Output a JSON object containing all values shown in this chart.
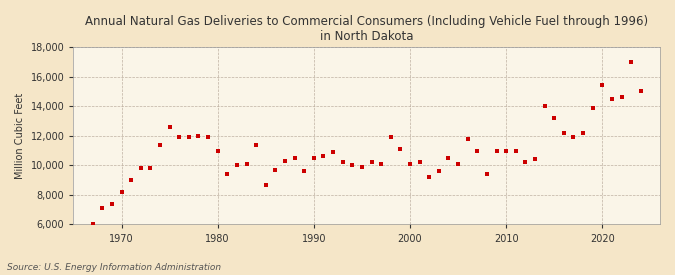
{
  "title": "Annual Natural Gas Deliveries to Commercial Consumers (Including Vehicle Fuel through 1996)\nin North Dakota",
  "ylabel": "Million Cubic Feet",
  "source": "Source: U.S. Energy Information Administration",
  "background_color": "#f5e6c8",
  "plot_background_color": "#faf5e8",
  "dot_color": "#cc0000",
  "ylim": [
    6000,
    18000
  ],
  "yticks": [
    6000,
    8000,
    10000,
    12000,
    14000,
    16000,
    18000
  ],
  "xticks": [
    1970,
    1980,
    1990,
    2000,
    2010,
    2020
  ],
  "xlim": [
    1965,
    2026
  ],
  "years": [
    1967,
    1968,
    1969,
    1970,
    1971,
    1972,
    1973,
    1974,
    1975,
    1976,
    1977,
    1978,
    1979,
    1980,
    1981,
    1982,
    1983,
    1984,
    1985,
    1986,
    1987,
    1988,
    1989,
    1990,
    1991,
    1992,
    1993,
    1994,
    1995,
    1996,
    1997,
    1998,
    1999,
    2000,
    2001,
    2002,
    2003,
    2004,
    2005,
    2006,
    2007,
    2008,
    2009,
    2010,
    2011,
    2012,
    2013,
    2014,
    2015,
    2016,
    2017,
    2018,
    2019,
    2020,
    2021,
    2022,
    2023,
    2024
  ],
  "values": [
    6000,
    7100,
    7400,
    8200,
    9000,
    9800,
    9800,
    11400,
    12600,
    11900,
    11900,
    12000,
    11900,
    11000,
    9400,
    10000,
    10100,
    11400,
    8700,
    9700,
    10300,
    10500,
    9600,
    10500,
    10600,
    10900,
    10200,
    10000,
    9900,
    10200,
    10100,
    11900,
    11100,
    10100,
    10200,
    9200,
    9600,
    10500,
    10100,
    11800,
    11000,
    9400,
    11000,
    11000,
    11000,
    10200,
    10400,
    14000,
    13200,
    12200,
    11900,
    12200,
    13900,
    15400,
    14500,
    14600,
    17000,
    15000
  ]
}
